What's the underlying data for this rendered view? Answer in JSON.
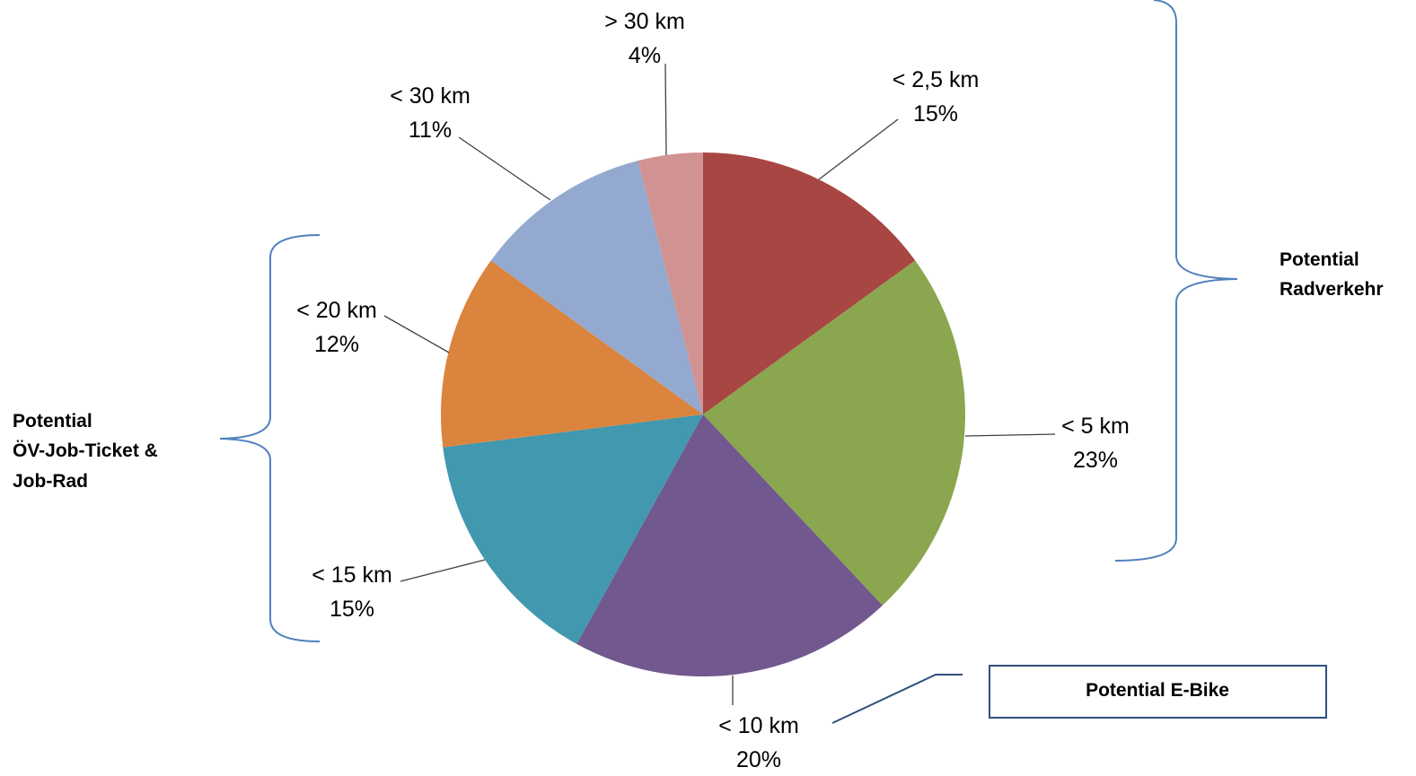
{
  "chart_data": {
    "type": "pie",
    "slices": [
      {
        "label": "< 2,5 km",
        "value": 15,
        "pct": "15%",
        "color": "#a84644"
      },
      {
        "label": "< 5 km",
        "value": 23,
        "pct": "23%",
        "color": "#8aa64e"
      },
      {
        "label": "< 10 km",
        "value": 20,
        "pct": "20%",
        "color": "#71588f"
      },
      {
        "label": "< 15 km",
        "value": 15,
        "pct": "15%",
        "color": "#4198af"
      },
      {
        "label": "< 20 km",
        "value": 12,
        "pct": "12%",
        "color": "#db843d"
      },
      {
        "label": "< 30 km",
        "value": 11,
        "pct": "11%",
        "color": "#93a9cf"
      },
      {
        "label": "> 30 km",
        "value": 4,
        "pct": "4%",
        "color": "#d19392"
      }
    ],
    "start_angle": "12 o'clock",
    "direction": "clockwise",
    "legend": "none"
  },
  "annotations": {
    "radverkehr": {
      "line1": "Potential",
      "line2": "Radverkehr"
    },
    "oev": {
      "line1": "Potential",
      "line2": "ÖV-Job-Ticket &",
      "line3": "Job-Rad"
    },
    "ebike": {
      "label": "Potential E-Bike"
    }
  },
  "colors": {
    "brace": "#4f81bd",
    "box_border": "#2f4f7f",
    "leader": "#404040"
  }
}
